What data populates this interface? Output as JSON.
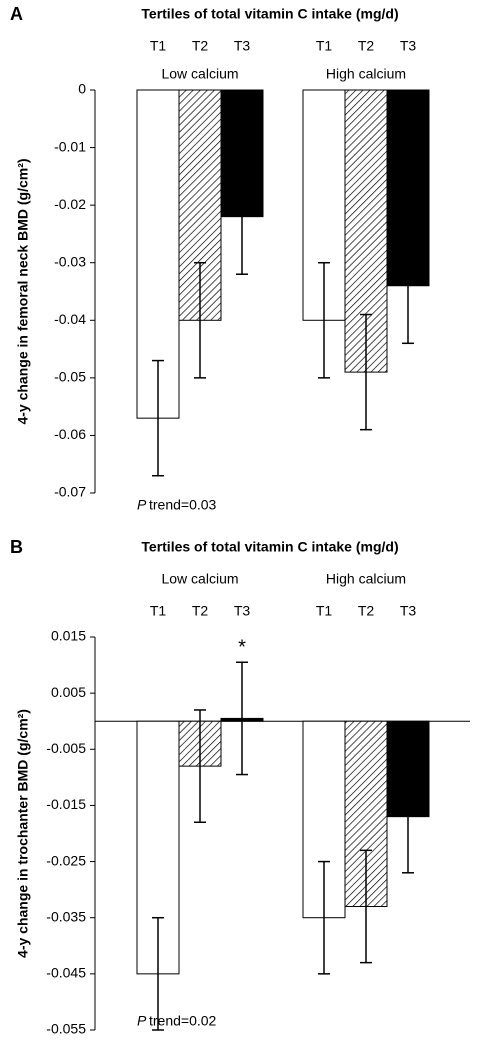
{
  "chart_data": [
    {
      "type": "bar",
      "panel": "A",
      "title": "Tertiles of total vitamin C intake (mg/d)",
      "ylabel": "4-y change in femoral neck BMD (g/cm²)",
      "categories": [
        "Low calcium",
        "High calcium"
      ],
      "series": [
        {
          "name": "T1",
          "color": "#ffffff",
          "hatch": false,
          "values": [
            -0.057,
            -0.04
          ],
          "errors": [
            0.01,
            0.01
          ]
        },
        {
          "name": "T2",
          "color": "#ffffff",
          "hatch": true,
          "values": [
            -0.04,
            -0.049
          ],
          "errors": [
            0.01,
            0.01
          ]
        },
        {
          "name": "T3",
          "color": "#000000",
          "hatch": false,
          "values": [
            -0.022,
            -0.034
          ],
          "errors": [
            0.01,
            0.01
          ]
        }
      ],
      "ylim": [
        -0.07,
        0
      ],
      "yticks": [
        0,
        -0.01,
        -0.02,
        -0.03,
        -0.04,
        -0.05,
        -0.06,
        -0.07
      ],
      "zero_line": false,
      "labels_order": "tertiles-first",
      "p_label": "P",
      "p_text": "trend=0.03"
    },
    {
      "type": "bar",
      "panel": "B",
      "title": "Tertiles of total vitamin C intake (mg/d)",
      "ylabel": "4-y change in trochanter BMD (g/cm²)",
      "categories": [
        "Low calcium",
        "High calcium"
      ],
      "series": [
        {
          "name": "T1",
          "color": "#ffffff",
          "hatch": false,
          "values": [
            -0.045,
            -0.035
          ],
          "errors": [
            0.01,
            0.01
          ]
        },
        {
          "name": "T2",
          "color": "#ffffff",
          "hatch": true,
          "values": [
            -0.008,
            -0.033
          ],
          "errors": [
            0.01,
            0.01
          ]
        },
        {
          "name": "T3",
          "color": "#000000",
          "hatch": false,
          "values": [
            0.0005,
            -0.017
          ],
          "errors": [
            0.01,
            0.01
          ]
        }
      ],
      "ylim": [
        -0.055,
        0.015
      ],
      "yticks": [
        0.015,
        0.005,
        -0.005,
        -0.015,
        -0.025,
        -0.035,
        -0.045,
        -0.055
      ],
      "zero_line": true,
      "labels_order": "groups-first",
      "star": "*",
      "star_series": 2,
      "star_category": 0,
      "p_label": "P",
      "p_text": "trend=0.02"
    }
  ]
}
